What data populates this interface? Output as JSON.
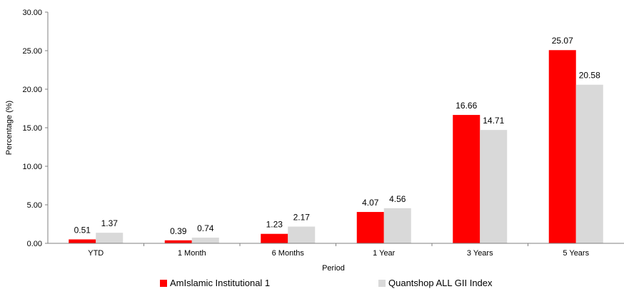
{
  "chart_data": {
    "type": "bar",
    "xlabel": "Period",
    "ylabel": "Percentage (%)",
    "ylim": [
      0,
      30
    ],
    "yticks": [
      "0.00",
      "5.00",
      "10.00",
      "15.00",
      "20.00",
      "25.00",
      "30.00"
    ],
    "grid": false,
    "legend_position": "bottom",
    "categories": [
      "YTD",
      "1 Month",
      "6 Months",
      "1 Year",
      "3 Years",
      "5 Years"
    ],
    "series": [
      {
        "name": "AmIslamic Institutional 1",
        "color": "#ff0000",
        "values": [
          0.51,
          0.39,
          1.23,
          4.07,
          16.66,
          25.07
        ],
        "labels": [
          "0.51",
          "0.39",
          "1.23",
          "4.07",
          "16.66",
          "25.07"
        ]
      },
      {
        "name": "Quantshop ALL GII Index",
        "color": "#d9d9d9",
        "values": [
          1.37,
          0.74,
          2.17,
          4.56,
          14.71,
          20.58
        ],
        "labels": [
          "1.37",
          "0.74",
          "2.17",
          "4.56",
          "14.71",
          "20.58"
        ]
      }
    ]
  }
}
